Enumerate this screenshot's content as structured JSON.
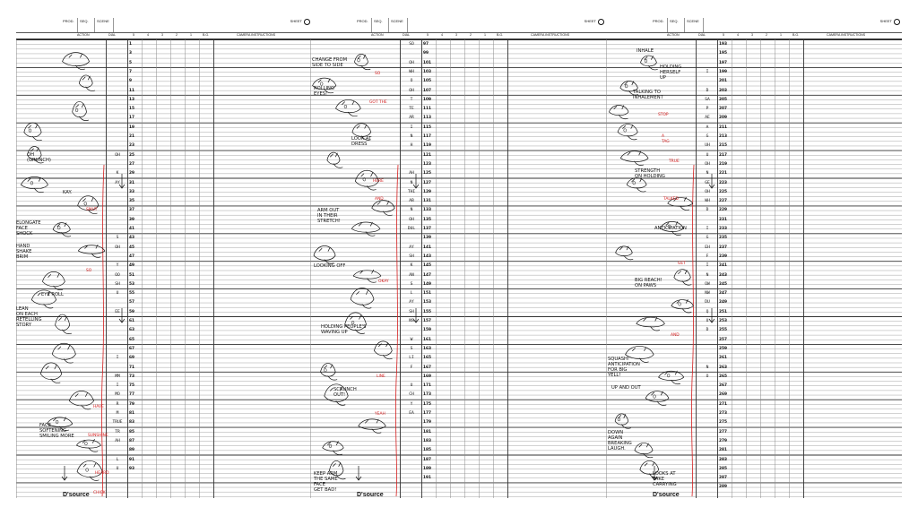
{
  "header": {
    "prod_label": "PROD.",
    "seq_label": "SEQ.",
    "scene_label": "SCENE",
    "sheet_label": "SHEET"
  },
  "columns": {
    "action": "ACTION",
    "dial": "DIAL",
    "levels": [
      "5",
      "4",
      "3",
      "2",
      "1",
      "B.G."
    ],
    "camera": "CAMERA INSTRUCTIONS"
  },
  "logo": "D'source",
  "colors": {
    "ink": "#111111",
    "red": "#d41c1c",
    "rule": "#555555"
  },
  "sheets": [
    {
      "frames": [
        "1",
        "3",
        "5",
        "7",
        "9",
        "11",
        "13",
        "15",
        "17",
        "19",
        "21",
        "23",
        "25",
        "27",
        "29",
        "31",
        "33",
        "35",
        "37",
        "39",
        "41",
        "43",
        "45",
        "47",
        "49",
        "51",
        "53",
        "55",
        "57",
        "59",
        "61",
        "63",
        "65",
        "67",
        "69",
        "71",
        "73",
        "75",
        "77",
        "79",
        "81",
        "83",
        "85",
        "87",
        "89",
        "91",
        "93"
      ],
      "dial": [
        {
          "row": 12,
          "text": "OH"
        },
        {
          "row": 14,
          "text": "K"
        },
        {
          "row": 15,
          "text": "AY"
        },
        {
          "row": 21,
          "text": "S"
        },
        {
          "row": 22,
          "text": "OH"
        },
        {
          "row": 24,
          "text": "Y"
        },
        {
          "row": 25,
          "text": "OO"
        },
        {
          "row": 26,
          "text": "SH"
        },
        {
          "row": 27,
          "text": "U"
        },
        {
          "row": 29,
          "text": "EE"
        },
        {
          "row": 34,
          "text": "I"
        },
        {
          "row": 36,
          "text": "MM"
        },
        {
          "row": 37,
          "text": "I"
        },
        {
          "row": 38,
          "text": "MO"
        },
        {
          "row": 39,
          "text": "R"
        },
        {
          "row": 40,
          "text": "M"
        },
        {
          "row": 41,
          "text": "TRUE"
        },
        {
          "row": 42,
          "text": "TR"
        },
        {
          "row": 43,
          "text": "AH"
        },
        {
          "row": 45,
          "text": "L"
        },
        {
          "row": 46,
          "text": "U"
        }
      ],
      "notes": [
        {
          "text": "OH\n(GRUNCH)",
          "red": false
        },
        {
          "text": "KAY.",
          "red": false
        },
        {
          "text": "ELONGATE\nFACE\nSHOCK",
          "red": false
        },
        {
          "text": "HAND\nSHAKE\nBRIM",
          "red": false
        },
        {
          "text": "EYE ROLL",
          "red": false
        },
        {
          "text": "LEAN\nON EACH\nRETELLING\nSTORY",
          "red": false
        },
        {
          "text": "FACE\nSOFTENING\nSMILING MORE",
          "red": false
        },
        {
          "text": "SMUT",
          "red": true
        },
        {
          "text": "SO",
          "red": true
        },
        {
          "text": "HAVE",
          "red": true
        },
        {
          "text": "SUNSHINE",
          "red": true
        },
        {
          "text": "HEARD",
          "red": true
        },
        {
          "text": "CHICK",
          "red": true
        }
      ]
    },
    {
      "frames": [
        "97",
        "99",
        "101",
        "103",
        "105",
        "107",
        "109",
        "111",
        "113",
        "115",
        "117",
        "119",
        "121",
        "123",
        "125",
        "127",
        "129",
        "131",
        "133",
        "135",
        "137",
        "139",
        "141",
        "143",
        "145",
        "147",
        "149",
        "151",
        "153",
        "155",
        "157",
        "159",
        "161",
        "163",
        "165",
        "167",
        "169",
        "171",
        "173",
        "175",
        "177",
        "179",
        "181",
        "183",
        "185",
        "187",
        "189",
        "191"
      ],
      "dial": [
        {
          "row": 0,
          "text": "SO"
        },
        {
          "row": 2,
          "text": "OH"
        },
        {
          "row": 3,
          "text": "WH"
        },
        {
          "row": 4,
          "text": "O"
        },
        {
          "row": 5,
          "text": "OH"
        },
        {
          "row": 6,
          "text": "T"
        },
        {
          "row": 7,
          "text": "TE"
        },
        {
          "row": 8,
          "text": "AR"
        },
        {
          "row": 9,
          "text": "I"
        },
        {
          "row": 10,
          "text": "N"
        },
        {
          "row": 11,
          "text": "H"
        },
        {
          "row": 14,
          "text": "AH"
        },
        {
          "row": 15,
          "text": "N"
        },
        {
          "row": 16,
          "text": "THI"
        },
        {
          "row": 17,
          "text": "AB"
        },
        {
          "row": 18,
          "text": "N"
        },
        {
          "row": 19,
          "text": "OH"
        },
        {
          "row": 20,
          "text": "DUL"
        },
        {
          "row": 22,
          "text": "AY"
        },
        {
          "row": 23,
          "text": "SH"
        },
        {
          "row": 24,
          "text": "K"
        },
        {
          "row": 25,
          "text": "AN"
        },
        {
          "row": 26,
          "text": "S"
        },
        {
          "row": 27,
          "text": "L"
        },
        {
          "row": 28,
          "text": "AY"
        },
        {
          "row": 29,
          "text": "SH"
        },
        {
          "row": 30,
          "text": "NS"
        },
        {
          "row": 32,
          "text": "W"
        },
        {
          "row": 33,
          "text": "S"
        },
        {
          "row": 34,
          "text": "LI"
        },
        {
          "row": 35,
          "text": "F"
        },
        {
          "row": 37,
          "text": "U"
        },
        {
          "row": 38,
          "text": "CH"
        },
        {
          "row": 39,
          "text": "Y"
        },
        {
          "row": 40,
          "text": "EA"
        }
      ],
      "notes": [
        {
          "text": "CHANGE FROM\nSIDE TO SIDE",
          "red": false
        },
        {
          "text": "ROLLING\nEYES!",
          "red": false
        },
        {
          "text": "LOOK AT\nDRESS",
          "red": false
        },
        {
          "text": "ARM OUT\nIN THEIR\nSTRETCH!",
          "red": false
        },
        {
          "text": "LOOKING OFF",
          "red": false
        },
        {
          "text": "HOLDING PEOPLE'S\nWAVING UP",
          "red": false
        },
        {
          "text": "SCRUNCH\nOUT!",
          "red": false
        },
        {
          "text": "KEEP ARM\nTHE SAME\nFACE\nGET BAD!",
          "red": false
        },
        {
          "text": "SO",
          "red": true
        },
        {
          "text": "GOT THE",
          "red": true
        },
        {
          "text": "HERE",
          "red": true
        },
        {
          "text": "AND",
          "red": true
        },
        {
          "text": "OKAY",
          "red": true
        },
        {
          "text": "LINE",
          "red": true
        },
        {
          "text": "YEAH",
          "red": true
        }
      ]
    },
    {
      "frames": [
        "193",
        "195",
        "197",
        "199",
        "201",
        "203",
        "205",
        "207",
        "209",
        "211",
        "213",
        "215",
        "217",
        "219",
        "221",
        "223",
        "225",
        "227",
        "229",
        "231",
        "233",
        "235",
        "237",
        "239",
        "241",
        "243",
        "245",
        "247",
        "249",
        "251",
        "253",
        "255",
        "257",
        "259",
        "261",
        "263",
        "265",
        "267",
        "269",
        "271",
        "273",
        "275",
        "277",
        "279",
        "281",
        "283",
        "285",
        "287",
        "289"
      ],
      "dial": [
        {
          "row": 3,
          "text": "I"
        },
        {
          "row": 5,
          "text": "D"
        },
        {
          "row": 6,
          "text": "SA"
        },
        {
          "row": 7,
          "text": "P"
        },
        {
          "row": 8,
          "text": "AE"
        },
        {
          "row": 9,
          "text": "A"
        },
        {
          "row": 10,
          "text": "G"
        },
        {
          "row": 11,
          "text": "UH"
        },
        {
          "row": 12,
          "text": "U"
        },
        {
          "row": 13,
          "text": "OH"
        },
        {
          "row": 14,
          "text": "N"
        },
        {
          "row": 15,
          "text": "GE"
        },
        {
          "row": 16,
          "text": "OH"
        },
        {
          "row": 17,
          "text": "WH"
        },
        {
          "row": 18,
          "text": "D"
        },
        {
          "row": 20,
          "text": "I"
        },
        {
          "row": 21,
          "text": "G"
        },
        {
          "row": 22,
          "text": "EH"
        },
        {
          "row": 23,
          "text": "F"
        },
        {
          "row": 24,
          "text": "I"
        },
        {
          "row": 25,
          "text": "N"
        },
        {
          "row": 26,
          "text": "OW"
        },
        {
          "row": 27,
          "text": "NW"
        },
        {
          "row": 28,
          "text": "DU"
        },
        {
          "row": 29,
          "text": "Q"
        },
        {
          "row": 30,
          "text": "U"
        },
        {
          "row": 31,
          "text": "D"
        },
        {
          "row": 35,
          "text": "N"
        },
        {
          "row": 36,
          "text": "O"
        }
      ],
      "notes": [
        {
          "text": "INHALE",
          "red": false
        },
        {
          "text": "HOLDING\nHERSELF\nUP",
          "red": false
        },
        {
          "text": "TALKING TO\nINHALEMENT",
          "red": false
        },
        {
          "text": "STRENGTH\nON HOLDING",
          "red": false
        },
        {
          "text": "ANTICIPATION",
          "red": false
        },
        {
          "text": "BIG REACH!\nON PAWS",
          "red": false
        },
        {
          "text": "SQUASH!\nANTICIPATION\nFOR BIG\nYELL!",
          "red": false
        },
        {
          "text": "UP AND OUT",
          "red": false
        },
        {
          "text": "DOWN\nAGAIN\nBREAKING\nLAUGH.",
          "red": false
        },
        {
          "text": "LOOKS AT\nTAKE\nCARRYING",
          "red": false
        },
        {
          "text": "STOP",
          "red": true
        },
        {
          "text": "A\nTAG",
          "red": true
        },
        {
          "text": "TRUE",
          "red": true
        },
        {
          "text": "GET",
          "red": true
        },
        {
          "text": "TALKED",
          "red": true
        },
        {
          "text": "AND",
          "red": true
        }
      ]
    }
  ]
}
